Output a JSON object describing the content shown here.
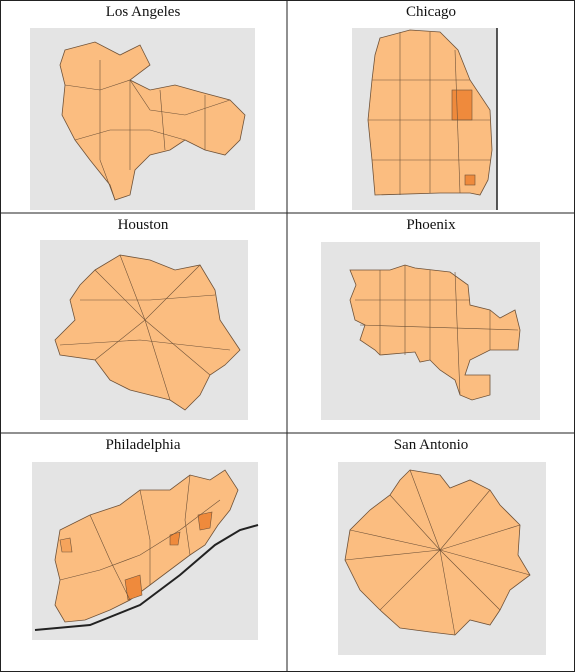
{
  "maps": [
    {
      "title": "Los Angeles"
    },
    {
      "title": "Chicago"
    },
    {
      "title": "Houston"
    },
    {
      "title": "Phoenix"
    },
    {
      "title": "Philadelphia"
    },
    {
      "title": "San Antonio"
    }
  ]
}
